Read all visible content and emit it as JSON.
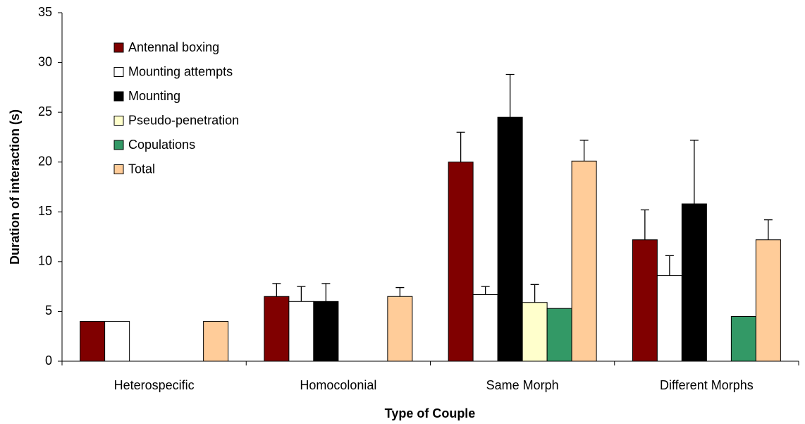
{
  "chart_data": {
    "type": "bar",
    "xlabel": "Type of Couple",
    "ylabel": "Duration of interaction (s)",
    "categories": [
      "Heterospecific",
      "Homocolonial",
      "Same Morph",
      "Different Morphs"
    ],
    "series": [
      {
        "name": "Antennal boxing",
        "color": "#800000",
        "values": [
          4,
          6.5,
          20,
          12.2
        ],
        "errors": [
          null,
          1.3,
          3,
          3
        ]
      },
      {
        "name": "Mounting attempts",
        "color": "#ffffff",
        "values": [
          4,
          6,
          6.7,
          8.6
        ],
        "errors": [
          null,
          1.5,
          0.8,
          2
        ]
      },
      {
        "name": "Mounting",
        "color": "#000000",
        "values": [
          null,
          6,
          24.5,
          15.8
        ],
        "errors": [
          null,
          1.8,
          4.3,
          6.4
        ]
      },
      {
        "name": "Pseudo-penetration",
        "color": "#ffffcc",
        "values": [
          null,
          null,
          5.9,
          null
        ],
        "errors": [
          null,
          null,
          1.8,
          null
        ]
      },
      {
        "name": "Copulations",
        "color": "#339966",
        "values": [
          null,
          null,
          5.3,
          4.5
        ],
        "errors": [
          null,
          null,
          null,
          null
        ]
      },
      {
        "name": "Total",
        "color": "#ffcc99",
        "values": [
          4,
          6.5,
          20.1,
          12.2
        ],
        "errors": [
          null,
          0.9,
          2.1,
          2
        ]
      }
    ],
    "ylim": [
      0,
      35
    ],
    "yticks": [
      0,
      5,
      10,
      15,
      20,
      25,
      30,
      35
    ],
    "legend": "upper left",
    "grid": false
  }
}
